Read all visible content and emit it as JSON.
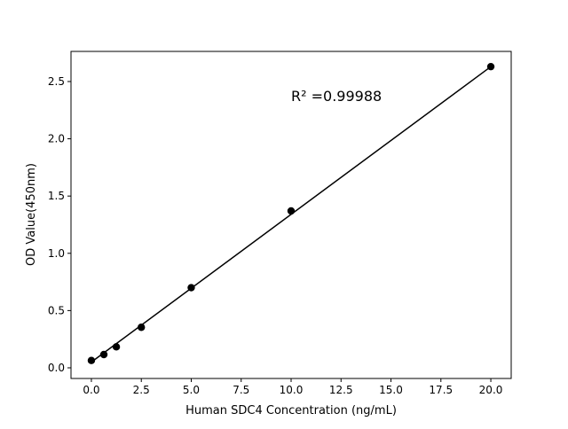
{
  "chart_data": {
    "type": "scatter",
    "title": "",
    "xlabel": "Human SDC4 Concentration (ng/mL)",
    "ylabel": "OD Value(450nm)",
    "xlim": [
      -1.02,
      21.02
    ],
    "ylim": [
      -0.093,
      2.763
    ],
    "xticks": [
      0,
      2.5,
      5,
      7.5,
      10,
      12.5,
      15,
      17.5,
      20
    ],
    "xtick_labels": [
      "0.0",
      "2.5",
      "5.0",
      "7.5",
      "10.0",
      "12.5",
      "15.0",
      "17.5",
      "20.0"
    ],
    "yticks": [
      0,
      0.5,
      1,
      1.5,
      2,
      2.5
    ],
    "ytick_labels": [
      "0.0",
      "0.5",
      "1.0",
      "1.5",
      "2.0",
      "2.5"
    ],
    "grid": false,
    "series": [
      {
        "x": [
          0,
          0.625,
          1.25,
          2.5,
          5,
          10,
          20
        ],
        "y": [
          0.064,
          0.116,
          0.183,
          0.354,
          0.7,
          1.37,
          2.63
        ],
        "color": "#000000",
        "marker": "circle"
      }
    ],
    "fit_line": {
      "x": [
        0,
        20
      ],
      "y": [
        0.05,
        2.63
      ],
      "color": "#000000"
    },
    "annotation": "R² =0.99988"
  }
}
